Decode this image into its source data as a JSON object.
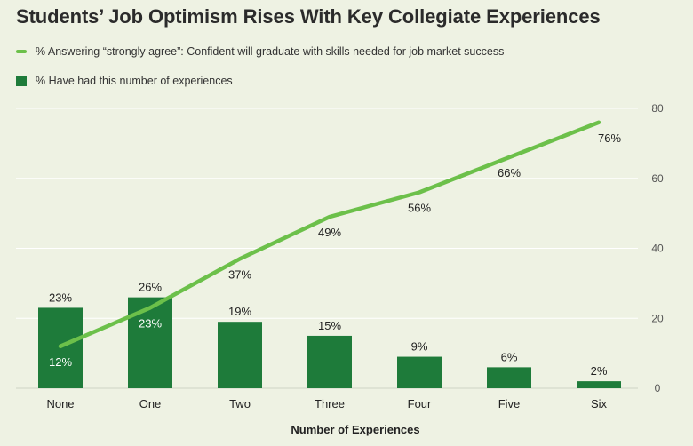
{
  "colors": {
    "background": "#eef2e3",
    "bar": "#1e7b3a",
    "line": "#6cc04a",
    "grid": "#ffffff",
    "axis": "#cfd4c4",
    "text": "#222222"
  },
  "legend": {
    "line_label": "% Answering “strongly agree”: Confident will graduate with skills needed for job market success",
    "bar_label": "% Have had this number of experiences"
  },
  "chart_data": {
    "type": "bar",
    "title": "Students’ Job Optimism Rises With Key Collegiate Experiences",
    "xlabel": "Number of Experiences",
    "ylabel": "",
    "ylim": [
      0,
      80
    ],
    "yticks": [
      0,
      20,
      40,
      60,
      80
    ],
    "grid": true,
    "y_axis_side": "right",
    "legend_position": "top-left",
    "categories": [
      "None",
      "One",
      "Two",
      "Three",
      "Four",
      "Five",
      "Six"
    ],
    "series": [
      {
        "name": "% Answering “strongly agree”: Confident will graduate with skills needed for job market success",
        "type": "line",
        "color": "#6cc04a",
        "values": [
          12,
          23,
          37,
          49,
          56,
          66,
          76
        ],
        "labels": [
          "12%",
          "23%",
          "37%",
          "49%",
          "56%",
          "66%",
          "76%"
        ]
      },
      {
        "name": "% Have had this number of experiences",
        "type": "bar",
        "color": "#1e7b3a",
        "values": [
          23,
          26,
          19,
          15,
          9,
          6,
          2
        ],
        "labels": [
          "23%",
          "26%",
          "19%",
          "15%",
          "9%",
          "6%",
          "2%"
        ]
      }
    ]
  }
}
